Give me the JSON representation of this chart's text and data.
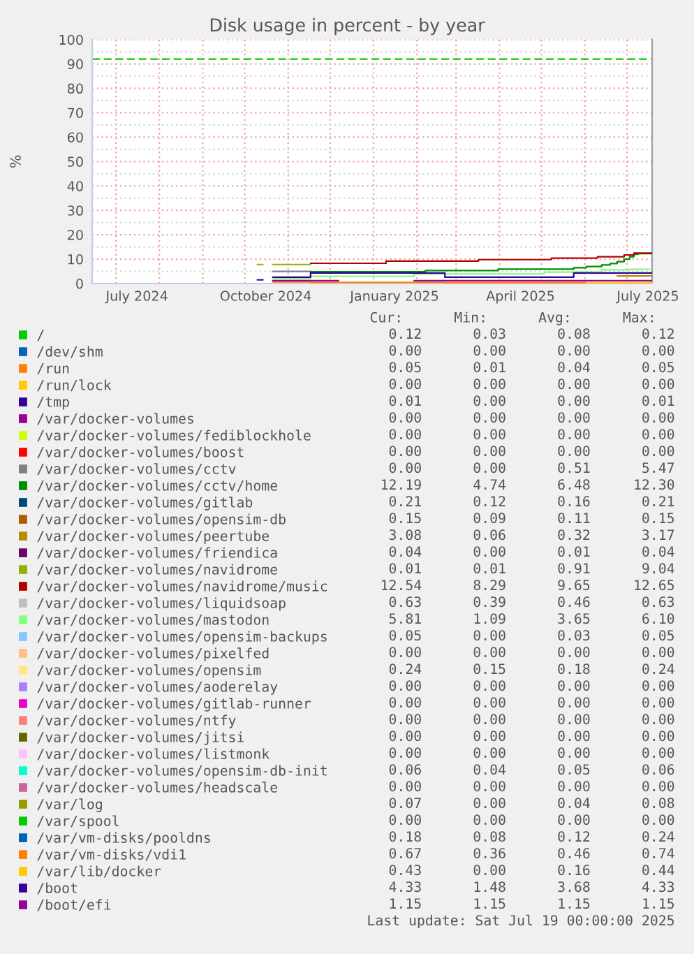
{
  "chart_data": {
    "type": "step",
    "title": "Disk usage in percent - by year",
    "ylabel": "%",
    "xlim": [
      "2024-06-14",
      "2025-07-19"
    ],
    "xticks": [
      {
        "value": "2024-07-01",
        "label": null
      },
      {
        "value": "2024-07-16",
        "label": "July 2024"
      },
      {
        "value": "2024-08-01",
        "label": null
      },
      {
        "value": "2024-09-01",
        "label": null
      },
      {
        "value": "2024-10-01",
        "label": null
      },
      {
        "value": "2024-10-16",
        "label": "October 2024"
      },
      {
        "value": "2024-11-01",
        "label": null
      },
      {
        "value": "2024-12-01",
        "label": null
      },
      {
        "value": "2025-01-01",
        "label": null
      },
      {
        "value": "2025-01-16",
        "label": "January 2025"
      },
      {
        "value": "2025-02-01",
        "label": null
      },
      {
        "value": "2025-03-01",
        "label": null
      },
      {
        "value": "2025-04-01",
        "label": null
      },
      {
        "value": "2025-04-16",
        "label": "April 2025"
      },
      {
        "value": "2025-05-01",
        "label": null
      },
      {
        "value": "2025-06-01",
        "label": null
      },
      {
        "value": "2025-07-01",
        "label": null
      },
      {
        "value": "2025-07-16",
        "label": "July 2025"
      }
    ],
    "ylim": [
      0,
      100
    ],
    "yticks": [
      0,
      {
        "value": 5,
        "label": null
      },
      10,
      {
        "value": 15,
        "label": null
      },
      20,
      {
        "value": 25,
        "label": null
      },
      30,
      {
        "value": 35,
        "label": null
      },
      40,
      {
        "value": 45,
        "label": null
      },
      50,
      {
        "value": 55,
        "label": null
      },
      60,
      {
        "value": 65,
        "label": null
      },
      70,
      {
        "value": 75,
        "label": null
      },
      80,
      {
        "value": 85,
        "label": null
      },
      90,
      {
        "value": 95,
        "label": null
      },
      100
    ],
    "grid": true,
    "legend": "bottom",
    "ref_lines": [
      {
        "axis": "y",
        "value": 92,
        "color": "#00cc00",
        "line_style": "dashed"
      }
    ],
    "series": [
      {
        "name": "/",
        "color": "#00cc00"
      },
      {
        "name": "/dev/shm",
        "color": "#0066b3"
      },
      {
        "name": "/run",
        "color": "#ff8000"
      },
      {
        "name": "/run/lock",
        "color": "#ffcc00"
      },
      {
        "name": "/tmp",
        "color": "#330099"
      },
      {
        "name": "/var/docker-volumes",
        "color": "#990099"
      },
      {
        "name": "/var/docker-volumes/fediblockhole",
        "color": "#ccff00"
      },
      {
        "name": "/var/docker-volumes/boost",
        "color": "#ff0000"
      },
      {
        "name": "/var/docker-volumes/cctv",
        "color": "#808080",
        "x": [
          "2024-10-21",
          "2024-11-17"
        ],
        "values": [
          5.0,
          5.0
        ]
      },
      {
        "name": "/var/docker-volumes/cctv/home",
        "color": "#008f00",
        "x": [
          "2024-11-17",
          "2025-02-07",
          "2025-03-31",
          "2025-05-24",
          "2025-06-02",
          "2025-06-13",
          "2025-06-19",
          "2025-06-24",
          "2025-06-29",
          "2025-07-03",
          "2025-07-06",
          "2025-07-09",
          "2025-07-19"
        ],
        "values": [
          4.8,
          5.3,
          5.9,
          6.5,
          7.0,
          7.6,
          8.2,
          9.0,
          10.0,
          11.0,
          12.0,
          12.3,
          12.2
        ]
      },
      {
        "name": "/var/docker-volumes/gitlab",
        "color": "#00487d"
      },
      {
        "name": "/var/docker-volumes/opensim-db",
        "color": "#b35a00"
      },
      {
        "name": "/var/docker-volumes/peertube",
        "color": "#b38f00",
        "x": [
          "2025-06-24",
          "2025-07-19"
        ],
        "values": [
          3.1,
          3.1
        ]
      },
      {
        "name": "/var/docker-volumes/friendica",
        "color": "#6b006b"
      },
      {
        "name": "/var/docker-volumes/navidrome",
        "color": "#8fb300",
        "x": [
          "2024-10-10",
          "2024-10-14",
          "2024-10-21",
          "2024-11-17"
        ],
        "values": [
          7.8,
          null,
          7.8,
          7.8
        ]
      },
      {
        "name": "/var/docker-volumes/navidrome/music",
        "color": "#b30000",
        "x": [
          "2024-11-17",
          "2025-01-10",
          "2025-03-17",
          "2025-05-08",
          "2025-06-10",
          "2025-06-29",
          "2025-07-06",
          "2025-07-19"
        ],
        "values": [
          8.3,
          9.2,
          9.8,
          10.4,
          11.0,
          11.7,
          12.5,
          12.5
        ]
      },
      {
        "name": "/var/docker-volumes/liquidsoap",
        "color": "#bebebe"
      },
      {
        "name": "/var/docker-volumes/mastodon",
        "color": "#80ff80",
        "x": [
          "2024-10-21",
          "2024-11-17",
          "2025-01-30",
          "2025-05-03",
          "2025-06-13",
          "2025-07-03",
          "2025-07-19"
        ],
        "values": [
          2.0,
          3.0,
          3.9,
          4.7,
          5.6,
          5.8,
          5.8
        ]
      },
      {
        "name": "/var/docker-volumes/opensim-backups",
        "color": "#80c9ff"
      },
      {
        "name": "/var/docker-volumes/pixelfed",
        "color": "#ffc080"
      },
      {
        "name": "/var/docker-volumes/opensim",
        "color": "#ffe680"
      },
      {
        "name": "/var/docker-volumes/aoderelay",
        "color": "#aa80ff"
      },
      {
        "name": "/var/docker-volumes/gitlab-runner",
        "color": "#ee00cc"
      },
      {
        "name": "/var/docker-volumes/ntfy",
        "color": "#ff8080"
      },
      {
        "name": "/var/docker-volumes/jitsi",
        "color": "#666600"
      },
      {
        "name": "/var/docker-volumes/listmonk",
        "color": "#ffbfff"
      },
      {
        "name": "/var/docker-volumes/opensim-db-init",
        "color": "#00ffcc"
      },
      {
        "name": "/var/docker-volumes/headscale",
        "color": "#cc6699"
      },
      {
        "name": "/var/log",
        "color": "#999900"
      },
      {
        "name": "/var/spool",
        "color": "#00cc00"
      },
      {
        "name": "/var/vm-disks/pooldns",
        "color": "#0066b3"
      },
      {
        "name": "/var/vm-disks/vdi1",
        "color": "#ff8000",
        "x": [
          "2024-10-21",
          "2024-11-17",
          "2025-02-21",
          "2025-06-02"
        ],
        "values": [
          0.7,
          0.5,
          0.4,
          0.4
        ]
      },
      {
        "name": "/var/lib/docker",
        "color": "#ffcc00",
        "x": [
          "2025-06-02",
          "2025-07-19"
        ],
        "values": [
          0.4,
          0.4
        ]
      },
      {
        "name": "/boot",
        "color": "#330099",
        "x": [
          "2024-10-10",
          "2024-10-14",
          "2024-10-21",
          "2024-11-17",
          "2025-02-21",
          "2025-05-24",
          "2025-07-19"
        ],
        "values": [
          1.5,
          null,
          2.6,
          4.3,
          2.6,
          4.3,
          4.3
        ]
      },
      {
        "name": "/boot/efi",
        "color": "#990099",
        "x": [
          "2024-10-21",
          "2024-12-07",
          "2025-01-30",
          "2025-07-19"
        ],
        "values": [
          1.2,
          null,
          1.2,
          1.2
        ]
      }
    ],
    "annotations": [
      "Cur:",
      "Min:",
      "Avg:",
      "Max:",
      "0.12",
      "0.03",
      "0.08",
      "0.12",
      "0.00",
      "0.00",
      "0.00",
      "0.00",
      "0.05",
      "0.01",
      "0.04",
      "0.05",
      "0.00",
      "0.00",
      "0.00",
      "0.00",
      "0.01",
      "0.00",
      "0.00",
      "0.01",
      "0.00",
      "0.00",
      "0.00",
      "0.00",
      "0.00",
      "0.00",
      "0.00",
      "0.00",
      "0.00",
      "0.00",
      "0.00",
      "0.00",
      "0.00",
      "0.00",
      "0.51",
      "5.47",
      "12.19",
      "4.74",
      "6.48",
      "12.30",
      "0.21",
      "0.12",
      "0.16",
      "0.21",
      "0.15",
      "0.09",
      "0.11",
      "0.15",
      "3.08",
      "0.06",
      "0.32",
      "3.17",
      "0.04",
      "0.00",
      "0.01",
      "0.04",
      "0.01",
      "0.01",
      "0.91",
      "9.04",
      "12.54",
      "8.29",
      "9.65",
      "12.65",
      "0.63",
      "0.39",
      "0.46",
      "0.63",
      "5.81",
      "1.09",
      "3.65",
      "6.10",
      "0.05",
      "0.00",
      "0.03",
      "0.05",
      "0.00",
      "0.00",
      "0.00",
      "0.00",
      "0.24",
      "0.15",
      "0.18",
      "0.24",
      "0.00",
      "0.00",
      "0.00",
      "0.00",
      "0.00",
      "0.00",
      "0.00",
      "0.00",
      "0.00",
      "0.00",
      "0.00",
      "0.00",
      "0.00",
      "0.00",
      "0.00",
      "0.00",
      "0.00",
      "0.00",
      "0.00",
      "0.00",
      "0.06",
      "0.04",
      "0.05",
      "0.06",
      "0.00",
      "0.00",
      "0.00",
      "0.00",
      "0.07",
      "0.00",
      "0.04",
      "0.08",
      "0.00",
      "0.00",
      "0.00",
      "0.00",
      "0.18",
      "0.08",
      "0.12",
      "0.24",
      "0.67",
      "0.36",
      "0.46",
      "0.74",
      "0.43",
      "0.00",
      "0.16",
      "0.44",
      "4.33",
      "1.48",
      "3.68",
      "4.33",
      "1.15",
      "1.15",
      "1.15",
      "1.15",
      "Last update: Sat Jul 19 00:00:00 2025"
    ]
  }
}
